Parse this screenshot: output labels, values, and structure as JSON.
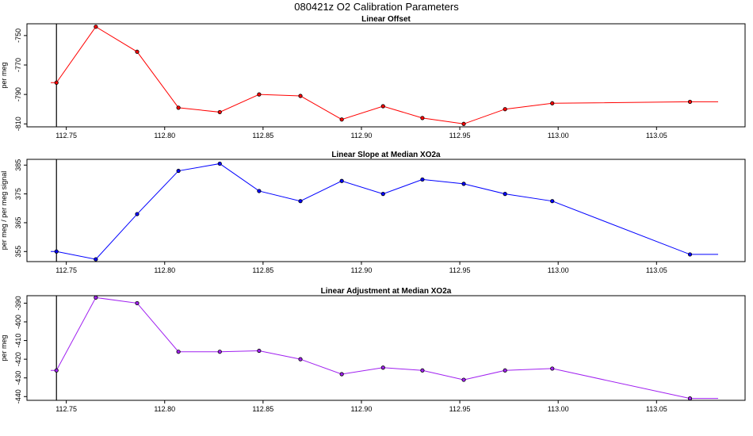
{
  "title": "080421z   O2 Calibration Parameters",
  "chart_data": [
    {
      "type": "line",
      "title": "Linear Offset",
      "ylabel": "per meg",
      "color": "#ff0000",
      "xlim": [
        112.73,
        113.095
      ],
      "ylim": [
        -812,
        -742
      ],
      "xticks": [
        "112.75",
        "112.80",
        "112.85",
        "112.90",
        "112.95",
        "113.00",
        "113.05"
      ],
      "yticks": [
        "-750",
        "-770",
        "-790",
        "-810"
      ],
      "vline_x": 112.745,
      "points": [
        {
          "x": 112.745,
          "y": -782
        },
        {
          "x": 112.765,
          "y": -744
        },
        {
          "x": 112.786,
          "y": -761
        },
        {
          "x": 112.807,
          "y": -799
        },
        {
          "x": 112.828,
          "y": -802
        },
        {
          "x": 112.848,
          "y": -790
        },
        {
          "x": 112.869,
          "y": -791
        },
        {
          "x": 112.89,
          "y": -807
        },
        {
          "x": 112.911,
          "y": -798
        },
        {
          "x": 112.931,
          "y": -806
        },
        {
          "x": 112.952,
          "y": -810
        },
        {
          "x": 112.973,
          "y": -800
        },
        {
          "x": 112.997,
          "y": -796
        },
        {
          "x": 113.067,
          "y": -795
        }
      ],
      "lead_y": -782,
      "tail_y": -795
    },
    {
      "type": "line",
      "title": "Linear Slope at Median XO2a",
      "ylabel": "per meg / per meg signal",
      "color": "#0000ff",
      "xlim": [
        112.73,
        113.095
      ],
      "ylim": [
        351.5,
        387
      ],
      "xticks": [
        "112.75",
        "112.80",
        "112.85",
        "112.90",
        "112.95",
        "113.00",
        "113.05"
      ],
      "yticks": [
        "355",
        "365",
        "375",
        "385"
      ],
      "vline_x": 112.745,
      "points": [
        {
          "x": 112.745,
          "y": 355
        },
        {
          "x": 112.765,
          "y": 352.3
        },
        {
          "x": 112.786,
          "y": 368
        },
        {
          "x": 112.807,
          "y": 383
        },
        {
          "x": 112.828,
          "y": 385.5
        },
        {
          "x": 112.848,
          "y": 376
        },
        {
          "x": 112.869,
          "y": 372.5
        },
        {
          "x": 112.89,
          "y": 379.5
        },
        {
          "x": 112.911,
          "y": 375
        },
        {
          "x": 112.931,
          "y": 380
        },
        {
          "x": 112.952,
          "y": 378.5
        },
        {
          "x": 112.973,
          "y": 375
        },
        {
          "x": 112.997,
          "y": 372.5
        },
        {
          "x": 113.067,
          "y": 354
        }
      ],
      "lead_y": 355,
      "tail_y": 354
    },
    {
      "type": "line",
      "title": "Linear Adjustment at Median XO2a",
      "ylabel": "per meg",
      "color": "#a020f0",
      "xlim": [
        112.73,
        113.095
      ],
      "ylim": [
        -442,
        -386
      ],
      "xticks": [
        "112.75",
        "112.80",
        "112.85",
        "112.90",
        "112.95",
        "113.00",
        "113.05"
      ],
      "yticks": [
        "-390",
        "-400",
        "-410",
        "-420",
        "-430",
        "-440"
      ],
      "vline_x": 112.745,
      "points": [
        {
          "x": 112.745,
          "y": -426
        },
        {
          "x": 112.765,
          "y": -387
        },
        {
          "x": 112.786,
          "y": -390
        },
        {
          "x": 112.807,
          "y": -416
        },
        {
          "x": 112.828,
          "y": -416
        },
        {
          "x": 112.848,
          "y": -415.5
        },
        {
          "x": 112.869,
          "y": -420
        },
        {
          "x": 112.89,
          "y": -428
        },
        {
          "x": 112.911,
          "y": -424.5
        },
        {
          "x": 112.931,
          "y": -426
        },
        {
          "x": 112.952,
          "y": -431
        },
        {
          "x": 112.973,
          "y": -426
        },
        {
          "x": 112.997,
          "y": -425
        },
        {
          "x": 113.067,
          "y": -441
        }
      ],
      "lead_y": -426,
      "tail_y": -441
    }
  ]
}
